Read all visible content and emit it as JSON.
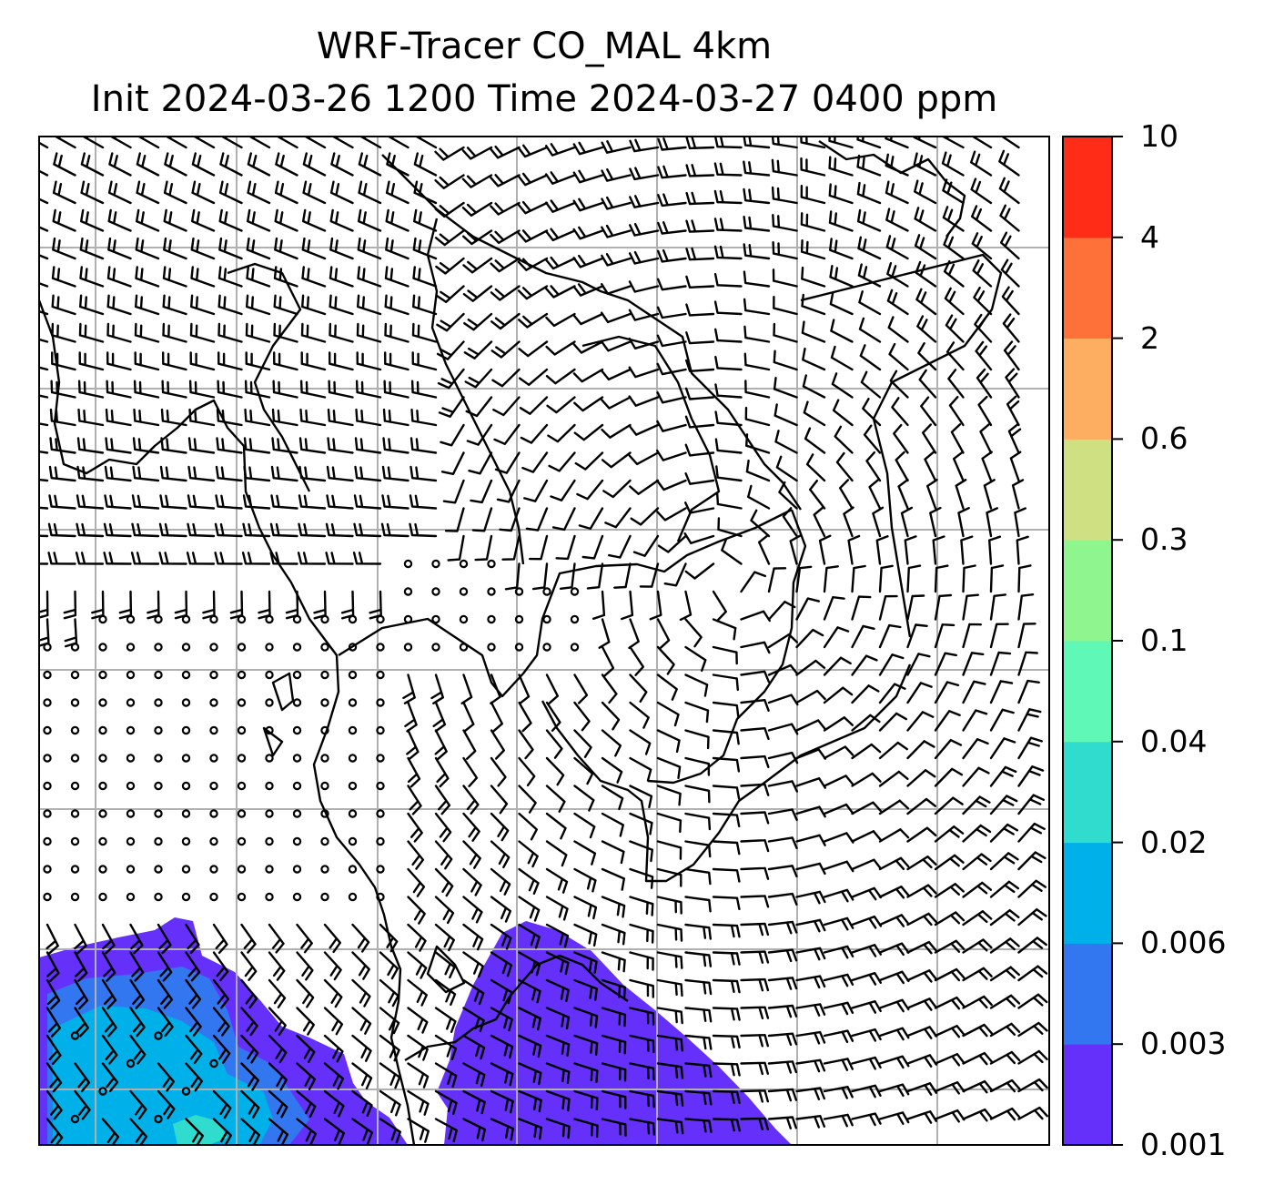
{
  "title": {
    "line1": "WRF-Tracer CO_MAL 4km",
    "line2": "Init 2024-03-26 1200 Time 2024-03-27 0400 ppm"
  },
  "colorbar": {
    "levels": [
      "0.001",
      "0.003",
      "0.006",
      "0.02",
      "0.04",
      "0.1",
      "0.3",
      "0.6",
      "2",
      "4",
      "10"
    ],
    "colors": [
      "#6530fa",
      "#3377f0",
      "#00b0e8",
      "#2fdccd",
      "#5ff8b6",
      "#8ff58f",
      "#cfe083",
      "#fdae61",
      "#fe7138",
      "#ff2d17"
    ]
  },
  "map": {
    "background": "#ffffff",
    "grid_color": "#b0b0b0",
    "coastline_color": "#000000",
    "barb_color": "#000000",
    "grid_columns": 7,
    "grid_rows": 7
  }
}
